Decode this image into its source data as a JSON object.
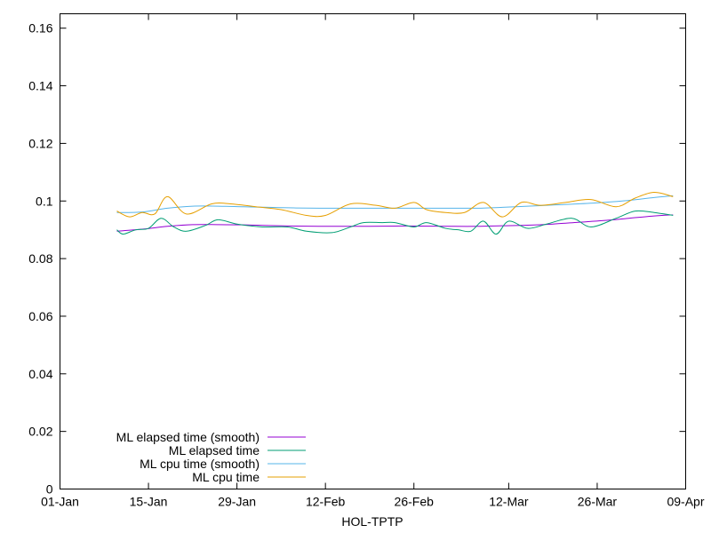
{
  "chart_data": {
    "type": "line",
    "title": "",
    "xlabel": "HOL-TPTP",
    "ylabel": "",
    "x_tick_labels": [
      "01-Jan",
      "15-Jan",
      "29-Jan",
      "12-Feb",
      "26-Feb",
      "12-Mar",
      "26-Mar",
      "09-Apr"
    ],
    "y_tick_labels": [
      "0",
      "0.02",
      "0.04",
      "0.06",
      "0.08",
      "0.1",
      "0.12",
      "0.14",
      "0.16"
    ],
    "xlim": [
      "01-Jan",
      "09-Apr"
    ],
    "ylim": [
      0,
      0.165
    ],
    "grid": false,
    "legend_position": "bottom-left",
    "series": [
      {
        "name": "ML elapsed time (smooth)",
        "color": "#9400d3",
        "x": [
          "10-Jan",
          "14-Jan",
          "18-Jan",
          "22-Jan",
          "26-Jan",
          "30-Jan",
          "03-Feb",
          "07-Feb",
          "11-Feb",
          "15-Feb",
          "19-Feb",
          "23-Feb",
          "27-Feb",
          "03-Mar",
          "07-Mar",
          "11-Mar",
          "15-Mar",
          "19-Mar",
          "23-Mar",
          "27-Mar",
          "31-Mar",
          "04-Apr",
          "07-Apr"
        ],
        "values": [
          0.0895,
          0.0902,
          0.0912,
          0.0918,
          0.0918,
          0.0917,
          0.0915,
          0.0913,
          0.0912,
          0.0912,
          0.0912,
          0.0913,
          0.0913,
          0.0912,
          0.0912,
          0.0914,
          0.0916,
          0.092,
          0.0926,
          0.0932,
          0.094,
          0.0948,
          0.0952
        ]
      },
      {
        "name": "ML elapsed time",
        "color": "#009e73",
        "x": [
          "10-Jan",
          "11-Jan",
          "13-Jan",
          "15-Jan",
          "17-Jan",
          "19-Jan",
          "21-Jan",
          "24-Jan",
          "26-Jan",
          "29-Jan",
          "02-Feb",
          "06-Feb",
          "09-Feb",
          "13-Feb",
          "16-Feb",
          "18-Feb",
          "21-Feb",
          "23-Feb",
          "26-Feb",
          "28-Feb",
          "02-Mar",
          "04-Mar",
          "06-Mar",
          "08-Mar",
          "10-Mar",
          "12-Mar",
          "15-Mar",
          "18-Mar",
          "22-Mar",
          "25-Mar",
          "29-Mar",
          "01-Apr",
          "04-Apr",
          "07-Apr"
        ],
        "values": [
          0.09,
          0.0885,
          0.09,
          0.0905,
          0.094,
          0.091,
          0.0895,
          0.0915,
          0.0935,
          0.092,
          0.091,
          0.091,
          0.0895,
          0.089,
          0.091,
          0.0925,
          0.0925,
          0.0925,
          0.091,
          0.0925,
          0.0905,
          0.09,
          0.0895,
          0.093,
          0.0885,
          0.093,
          0.0905,
          0.092,
          0.094,
          0.091,
          0.094,
          0.0965,
          0.096,
          0.095
        ]
      },
      {
        "name": "ML cpu time (smooth)",
        "color": "#56b4e9",
        "x": [
          "10-Jan",
          "14-Jan",
          "18-Jan",
          "22-Jan",
          "26-Jan",
          "30-Jan",
          "03-Feb",
          "07-Feb",
          "11-Feb",
          "15-Feb",
          "19-Feb",
          "23-Feb",
          "27-Feb",
          "03-Mar",
          "07-Mar",
          "11-Mar",
          "15-Mar",
          "19-Mar",
          "23-Mar",
          "27-Mar",
          "31-Mar",
          "04-Apr",
          "07-Apr"
        ],
        "values": [
          0.096,
          0.0962,
          0.0975,
          0.0982,
          0.0982,
          0.098,
          0.0978,
          0.0976,
          0.0975,
          0.0975,
          0.0975,
          0.0975,
          0.0975,
          0.0975,
          0.0975,
          0.0978,
          0.0982,
          0.0986,
          0.099,
          0.0995,
          0.1002,
          0.1012,
          0.1018
        ]
      },
      {
        "name": "ML cpu time",
        "color": "#e69f00",
        "x": [
          "10-Jan",
          "12-Jan",
          "14-Jan",
          "16-Jan",
          "18-Jan",
          "21-Jan",
          "25-Jan",
          "28-Jan",
          "01-Feb",
          "05-Feb",
          "09-Feb",
          "12-Feb",
          "16-Feb",
          "20-Feb",
          "23-Feb",
          "26-Feb",
          "28-Feb",
          "02-Mar",
          "05-Mar",
          "08-Mar",
          "11-Mar",
          "14-Mar",
          "17-Mar",
          "21-Mar",
          "25-Mar",
          "29-Mar",
          "01-Apr",
          "04-Apr",
          "07-Apr"
        ],
        "values": [
          0.0965,
          0.0945,
          0.096,
          0.0955,
          0.1015,
          0.0955,
          0.099,
          0.099,
          0.098,
          0.097,
          0.095,
          0.095,
          0.099,
          0.0985,
          0.0975,
          0.0995,
          0.097,
          0.096,
          0.096,
          0.0995,
          0.0945,
          0.0995,
          0.0985,
          0.0995,
          0.1005,
          0.098,
          0.101,
          0.103,
          0.1015
        ]
      }
    ]
  }
}
